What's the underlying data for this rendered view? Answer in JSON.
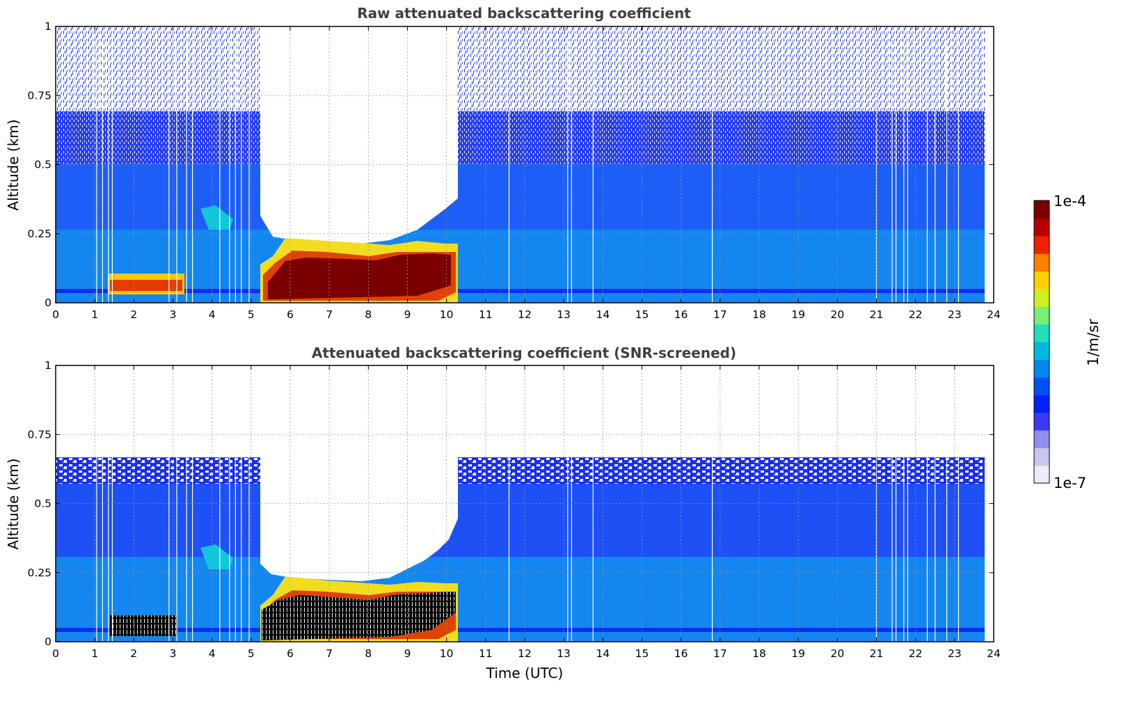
{
  "chart_data": [
    {
      "type": "heatmap",
      "title": "Raw attenuated backscattering coefficient",
      "xlabel": "",
      "ylabel": "Altitude (km)",
      "xlim": [
        0,
        24
      ],
      "ylim": [
        0,
        1
      ],
      "x_ticks": [
        "0",
        "1",
        "2",
        "3",
        "4",
        "5",
        "6",
        "7",
        "8",
        "9",
        "10",
        "11",
        "12",
        "13",
        "14",
        "15",
        "16",
        "17",
        "18",
        "19",
        "20",
        "21",
        "22",
        "23",
        "24"
      ],
      "y_ticks": [
        "0",
        "0.25",
        "0.5",
        "0.75",
        "1"
      ],
      "grid": true,
      "regions": [
        {
          "desc": "low aerosol layer",
          "x": [
            1.4,
            3.0
          ],
          "y": [
            0.02,
            0.09
          ],
          "level": "high"
        },
        {
          "desc": "fog / low cloud",
          "x": [
            5.3,
            10.3
          ],
          "y": [
            0.0,
            0.22
          ],
          "level": "saturated"
        },
        {
          "desc": "boundary layer",
          "x": [
            0,
            23.8
          ],
          "y": [
            0.0,
            0.5
          ],
          "level": "medium"
        },
        {
          "desc": "noisy upper signal",
          "x": [
            0,
            23.8
          ],
          "y": [
            0.5,
            1.0
          ],
          "level": "low"
        }
      ]
    },
    {
      "type": "heatmap",
      "title": "Attenuated backscattering coefficient (SNR-screened)",
      "xlabel": "Time (UTC)",
      "ylabel": "Altitude (km)",
      "xlim": [
        0,
        24
      ],
      "ylim": [
        0,
        1
      ],
      "x_ticks": [
        "0",
        "1",
        "2",
        "3",
        "4",
        "5",
        "6",
        "7",
        "8",
        "9",
        "10",
        "11",
        "12",
        "13",
        "14",
        "15",
        "16",
        "17",
        "18",
        "19",
        "20",
        "21",
        "22",
        "23",
        "24"
      ],
      "y_ticks": [
        "0",
        "0.25",
        "0.5",
        "0.75",
        "1"
      ],
      "grid": true,
      "regions": [
        {
          "desc": "screened top",
          "x": [
            0,
            23.8
          ],
          "y": [
            0.66,
            0.67
          ],
          "level": "cut"
        },
        {
          "desc": "fog / low cloud",
          "x": [
            5.3,
            10.3
          ],
          "y": [
            0.0,
            0.22
          ],
          "level": "saturated"
        },
        {
          "desc": "boundary layer",
          "x": [
            0,
            23.8
          ],
          "y": [
            0.0,
            0.66
          ],
          "level": "medium"
        }
      ]
    }
  ],
  "colorbar": {
    "label": "1/m/sr",
    "max_label": "1e-4",
    "min_label": "1e-7",
    "colors": [
      "#ecebf8",
      "#c6c6f0",
      "#8f8ff0",
      "#3a3af5",
      "#0022ff",
      "#0050f5",
      "#0088ee",
      "#00bbdd",
      "#22ddbb",
      "#77ee77",
      "#ccf022",
      "#ffd000",
      "#ff8000",
      "#f02000",
      "#b80000",
      "#7a0000"
    ]
  }
}
